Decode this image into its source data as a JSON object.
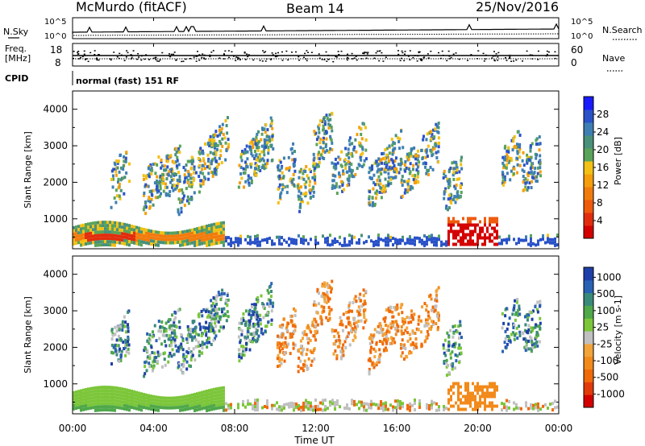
{
  "header": {
    "station": "McMurdo (fitACF)",
    "beam": "Beam 14",
    "date": "25/Nov/2016"
  },
  "summary_panels": {
    "noise": {
      "left_label": "N.Sky",
      "right_label": "N.Search",
      "left_ticks": [
        "10^5",
        "10^0"
      ],
      "right_ticks": [
        "10^5",
        "10^0"
      ]
    },
    "freq": {
      "left_label_line1": "Freq.",
      "left_label_line2": "[MHz]",
      "left_ticks": [
        "18",
        "8"
      ],
      "right_label": "Nave",
      "right_ticks": [
        "60",
        "0"
      ]
    },
    "cpid": {
      "label": "CPID",
      "text": "normal (fast) 151 RF"
    }
  },
  "chart_data": [
    {
      "type": "heatmap",
      "name": "power",
      "ylabel": "Slant Range [km]",
      "ylim": [
        180,
        4500
      ],
      "yticks": [
        1000,
        2000,
        3000,
        4000
      ],
      "xlim": [
        0,
        24
      ],
      "colorbar": {
        "label": "Power [dB]",
        "ticks": [
          4,
          8,
          12,
          16,
          20,
          24,
          28
        ],
        "range": [
          0,
          32
        ],
        "colors": [
          "#1a1aff",
          "#2a52c8",
          "#3d7fb3",
          "#49917a",
          "#5aa35a",
          "#f2c114",
          "#f59e0b",
          "#f27b0d",
          "#ef5a0d",
          "#e22d0d",
          "#d40000"
        ]
      }
    },
    {
      "type": "heatmap",
      "name": "velocity",
      "ylabel": "Slant Range [km]",
      "ylim": [
        180,
        4500
      ],
      "yticks": [
        1000,
        2000,
        3000,
        4000
      ],
      "xlim": [
        0,
        24
      ],
      "colorbar": {
        "label": "Velocity [m s-1]",
        "tick_labels": [
          "1000",
          "500",
          "100",
          "25",
          "-25",
          "-100",
          "-500",
          "-1000"
        ],
        "colors": [
          "#1f3fa8",
          "#2a62b3",
          "#3a8a7a",
          "#4fa84a",
          "#7cc63a",
          "#c0c0c0",
          "#f2a43a",
          "#f28a1a",
          "#f06a0a",
          "#e23a0a",
          "#d40000"
        ]
      }
    }
  ],
  "x_axis": {
    "label": "Time UT",
    "ticks": [
      "00:00",
      "04:00",
      "08:00",
      "12:00",
      "16:00",
      "20:00",
      "00:00"
    ]
  }
}
